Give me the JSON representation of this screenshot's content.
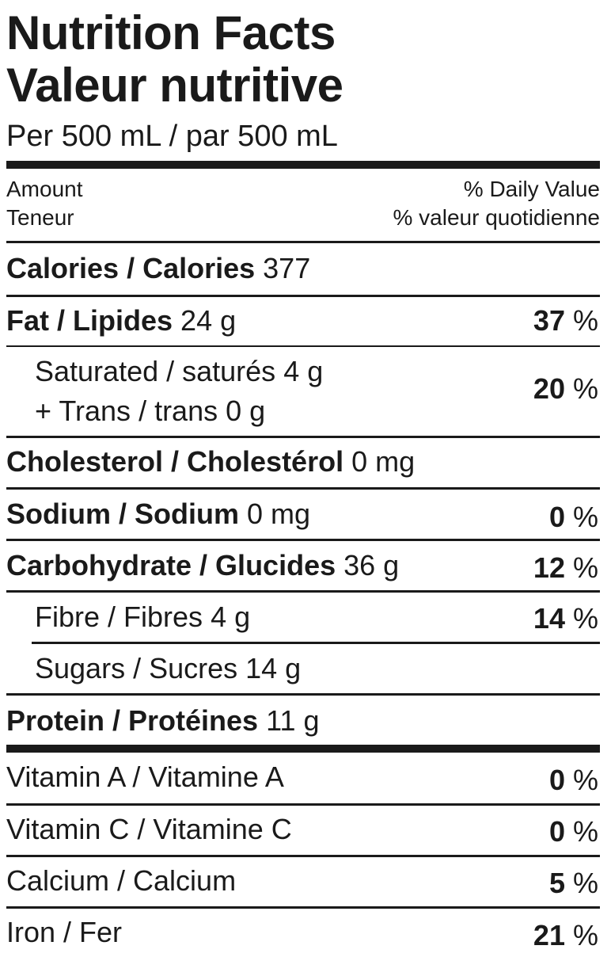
{
  "title_en": "Nutrition Facts",
  "title_fr": "Valeur nutritive",
  "serving": "Per 500 mL / par 500 mL",
  "header": {
    "amount_en": "Amount",
    "amount_fr": "Teneur",
    "dv_en": "% Daily Value",
    "dv_fr": "% valeur quotidienne"
  },
  "rows": {
    "calories": {
      "label": "Calories / Calories",
      "amount": "377"
    },
    "fat": {
      "label": "Fat / Lipides",
      "amount": "24 g",
      "dv": "37",
      "pct": "%"
    },
    "saturated": {
      "label": "Saturated / saturés",
      "amount": "4 g"
    },
    "trans": {
      "label": "+ Trans / trans",
      "amount": "0 g",
      "dv": "20",
      "pct": "%"
    },
    "cholesterol": {
      "label": "Cholesterol / Cholestérol",
      "amount": "0 mg"
    },
    "sodium": {
      "label": "Sodium / Sodium",
      "amount": "0 mg",
      "dv": "0",
      "pct": "%"
    },
    "carbohydrate": {
      "label": "Carbohydrate / Glucides",
      "amount": "36 g",
      "dv": "12",
      "pct": "%"
    },
    "fibre": {
      "label": "Fibre / Fibres",
      "amount": "4 g",
      "dv": "14",
      "pct": "%"
    },
    "sugars": {
      "label": "Sugars / Sucres",
      "amount": "14 g"
    },
    "protein": {
      "label": "Protein / Protéines",
      "amount": "11 g"
    },
    "vitamin_a": {
      "label": "Vitamin A / Vitamine A",
      "dv": "0",
      "pct": "%"
    },
    "vitamin_c": {
      "label": "Vitamin C / Vitamine C",
      "dv": "0",
      "pct": "%"
    },
    "calcium": {
      "label": "Calcium / Calcium",
      "dv": "5",
      "pct": "%"
    },
    "iron": {
      "label": "Iron / Fer",
      "dv": "21",
      "pct": "%"
    }
  }
}
